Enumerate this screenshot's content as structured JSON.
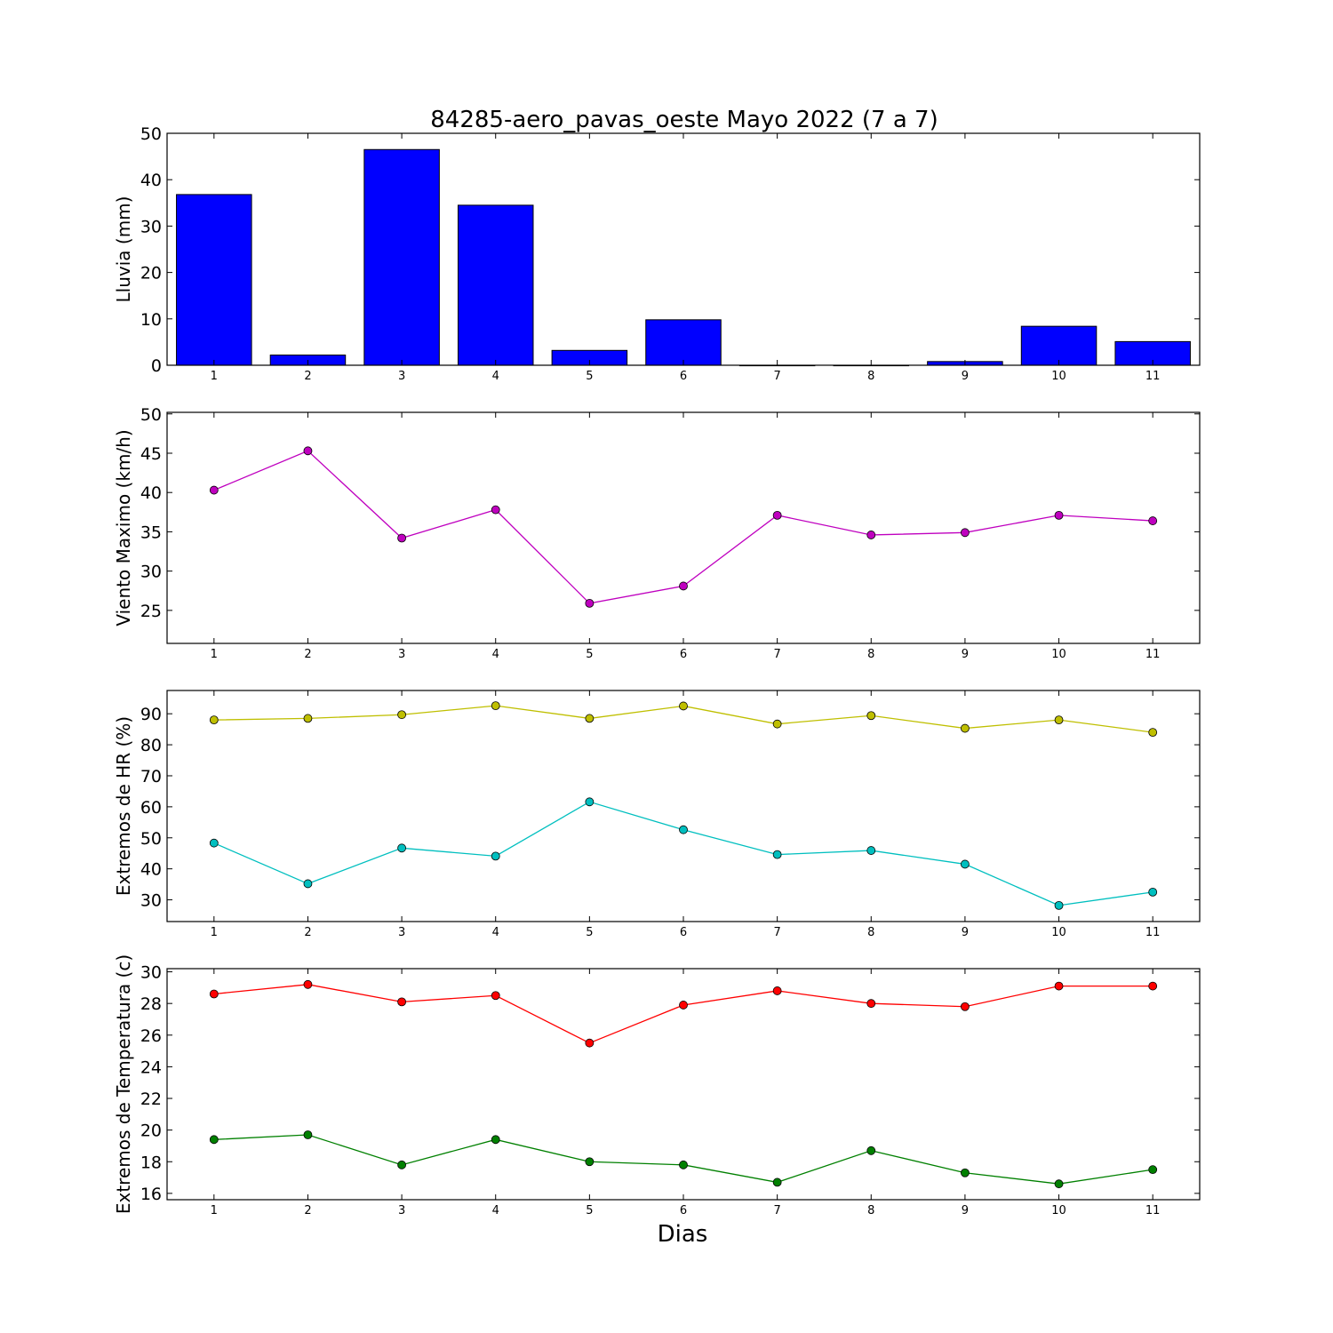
{
  "figure": {
    "title": "84285-aero_pavas_oeste Mayo 2022  (7 a 7)",
    "xlabel": "Dias"
  },
  "chart_data": [
    {
      "type": "bar",
      "id": "lluvia",
      "ylabel": "Lluvia (mm)",
      "categories": [
        1,
        2,
        3,
        4,
        5,
        6,
        7,
        8,
        9,
        10,
        11
      ],
      "ylim": [
        0,
        50
      ],
      "yticks": [
        0,
        10,
        20,
        30,
        40,
        50
      ],
      "series": [
        {
          "values": [
            36.8,
            2.2,
            46.5,
            34.5,
            3.2,
            9.8,
            0.0,
            0.0,
            0.8,
            8.4,
            5.1
          ],
          "color": "#0000ff"
        }
      ]
    },
    {
      "type": "line",
      "id": "viento",
      "ylabel": "Viento Maximo (km/h)",
      "x": [
        1,
        2,
        3,
        4,
        5,
        6,
        7,
        8,
        9,
        10,
        11
      ],
      "ylim": [
        20.8,
        50.2
      ],
      "yticks": [
        25,
        30,
        35,
        40,
        45,
        50
      ],
      "series": [
        {
          "values": [
            40.3,
            45.3,
            34.2,
            37.8,
            25.9,
            28.1,
            37.1,
            34.6,
            34.9,
            37.1,
            36.4
          ],
          "color": "#bf00bf"
        }
      ]
    },
    {
      "type": "line",
      "id": "humedad",
      "ylabel": "Extremos de HR (%)",
      "x": [
        1,
        2,
        3,
        4,
        5,
        6,
        7,
        8,
        9,
        10,
        11
      ],
      "ylim": [
        23,
        97.5
      ],
      "yticks": [
        30,
        40,
        50,
        60,
        70,
        80,
        90
      ],
      "series": [
        {
          "values": [
            88.0,
            88.5,
            89.7,
            92.6,
            88.5,
            92.5,
            86.7,
            89.4,
            85.3,
            88.0,
            84.0
          ],
          "color": "#bfbf00"
        },
        {
          "values": [
            48.3,
            35.2,
            46.7,
            44.1,
            61.6,
            52.6,
            44.6,
            45.9,
            41.5,
            28.2,
            32.5
          ],
          "color": "#00bfbf"
        }
      ]
    },
    {
      "type": "line",
      "id": "temperatura",
      "ylabel": "Extremos de Temperatura (c)",
      "x": [
        1,
        2,
        3,
        4,
        5,
        6,
        7,
        8,
        9,
        10,
        11
      ],
      "ylim": [
        15.6,
        30.2
      ],
      "yticks": [
        16,
        18,
        20,
        22,
        24,
        26,
        28,
        30
      ],
      "series": [
        {
          "values": [
            28.6,
            29.2,
            28.1,
            28.5,
            25.5,
            27.9,
            28.8,
            28.0,
            27.8,
            29.1,
            29.1
          ],
          "color": "#ff0000"
        },
        {
          "values": [
            19.4,
            19.7,
            17.8,
            19.4,
            18.0,
            17.8,
            16.7,
            18.7,
            17.3,
            16.6,
            17.5
          ],
          "color": "#008000"
        }
      ]
    }
  ]
}
